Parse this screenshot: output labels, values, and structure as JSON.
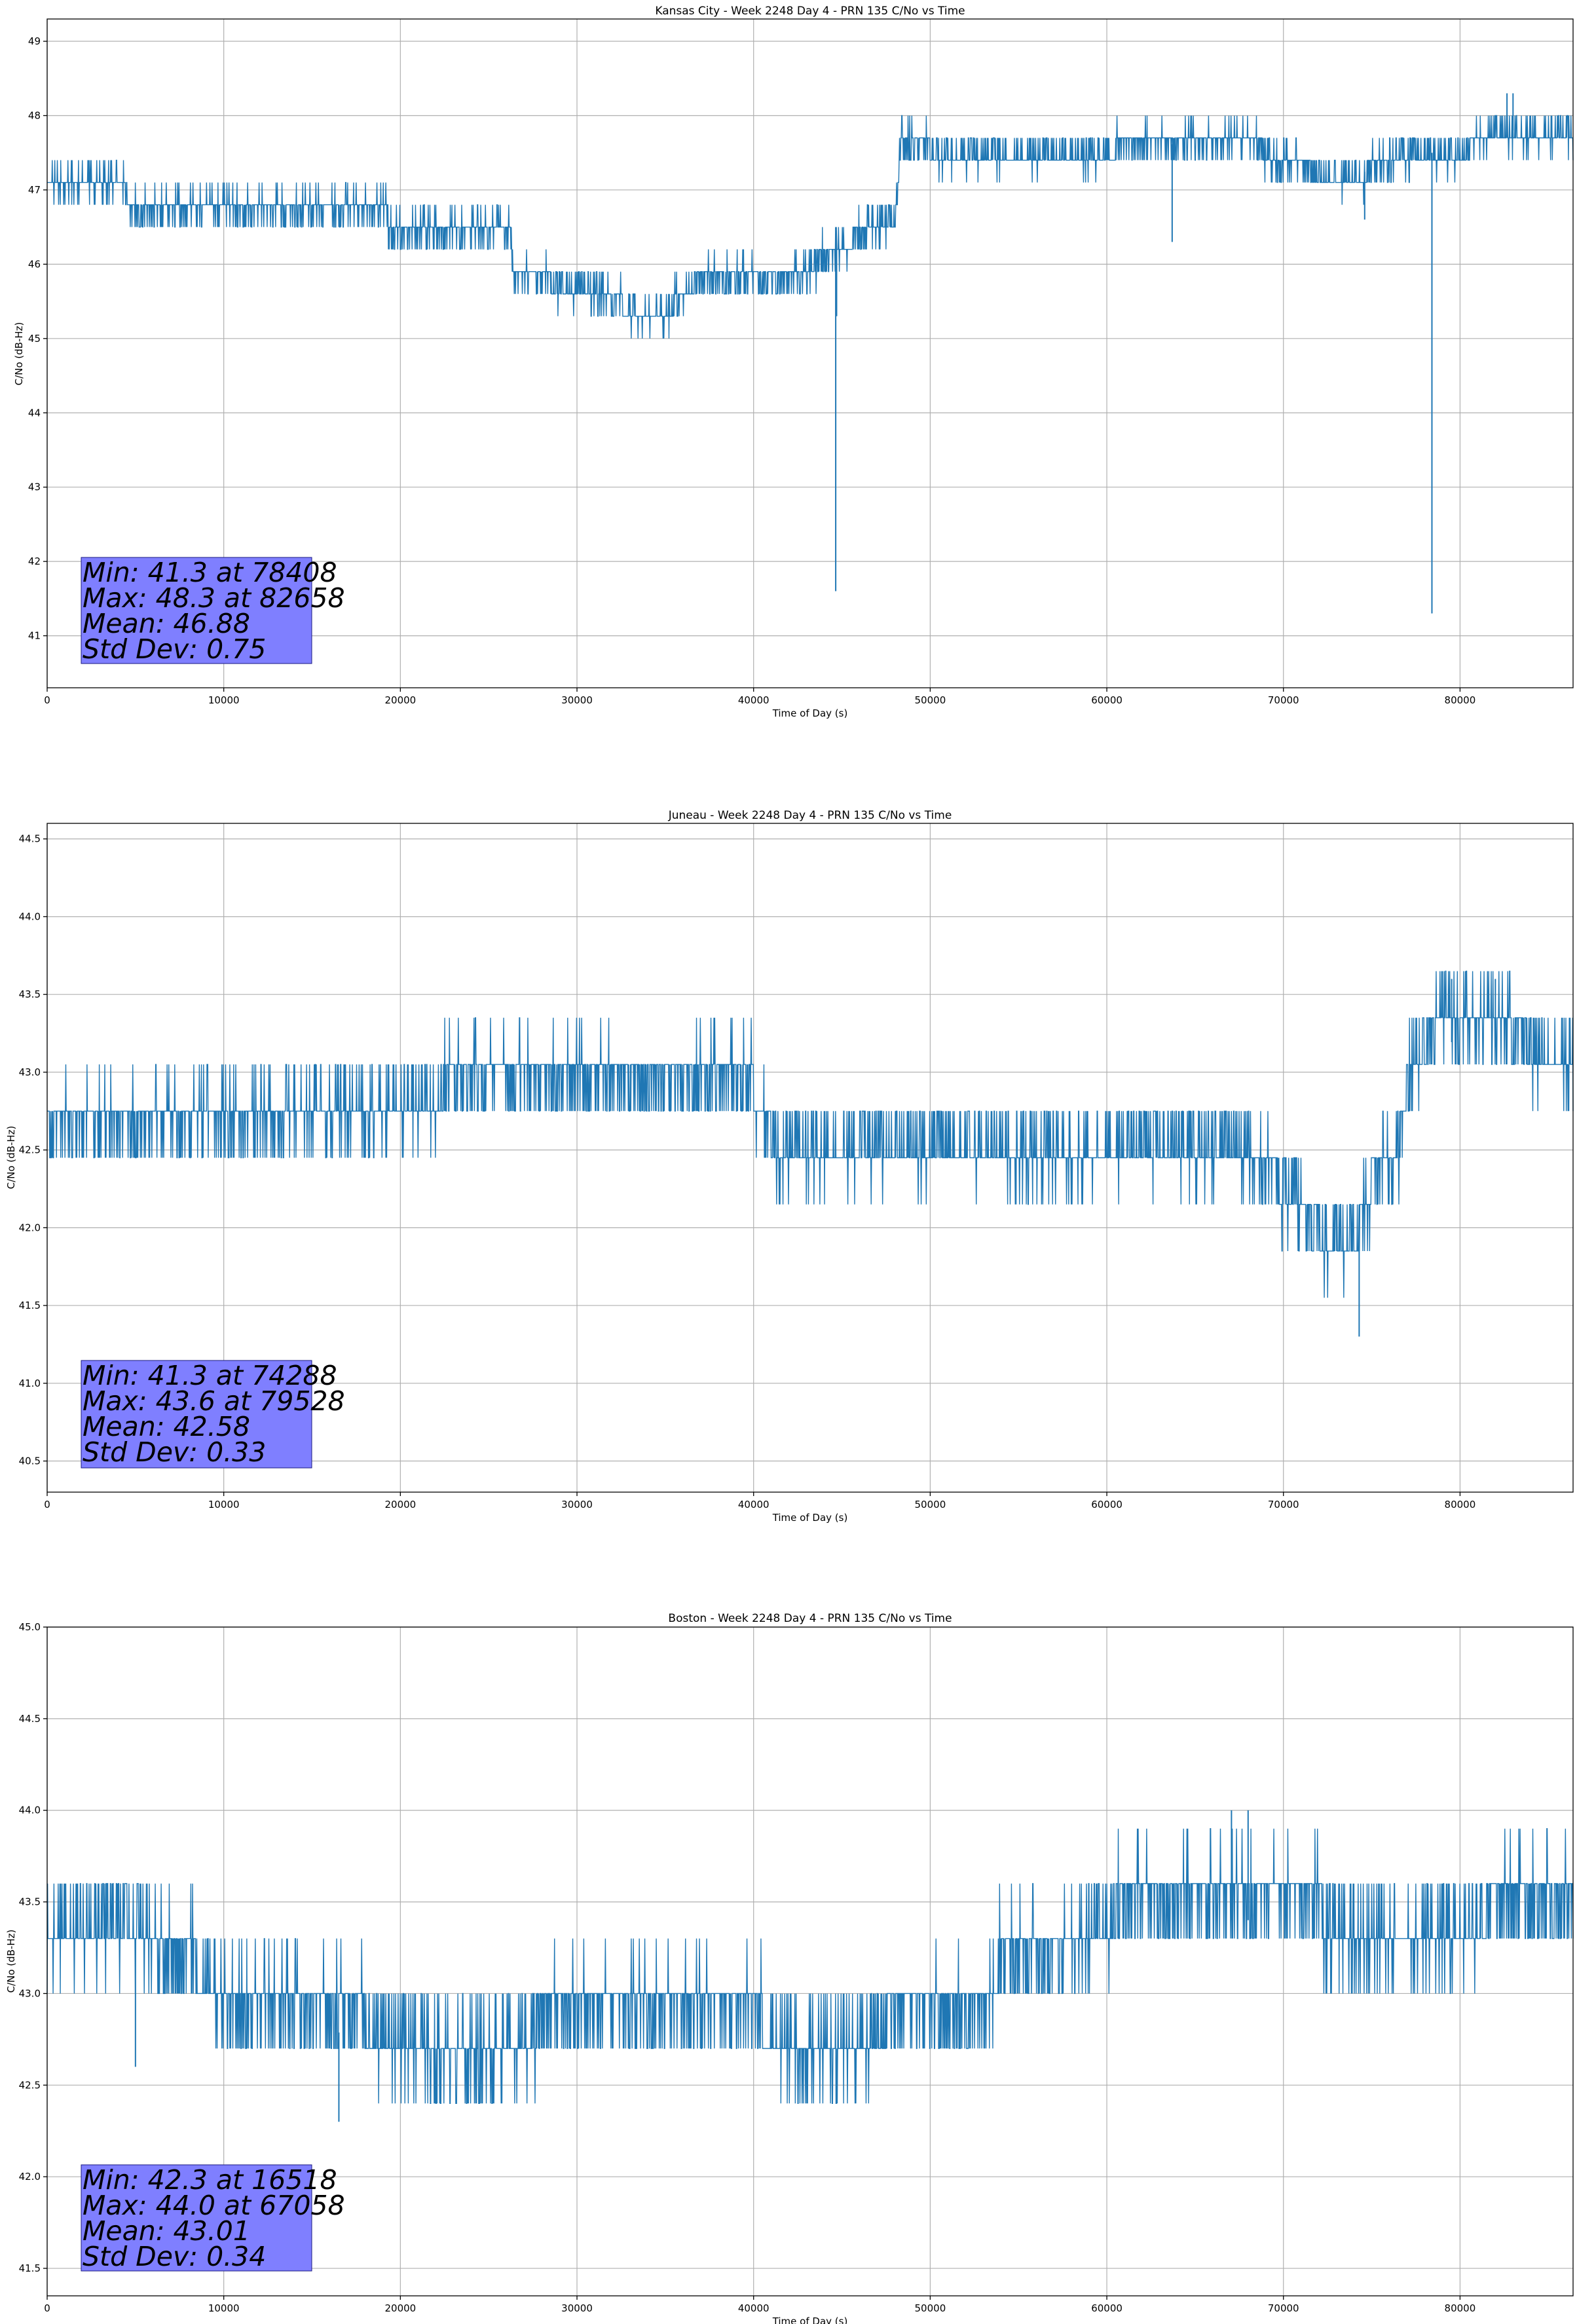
{
  "chart_data": [
    {
      "type": "line",
      "title": "Kansas City - Week 2248 Day 4 - PRN 135 C/No vs Time",
      "xlabel": "Time of Day (s)",
      "ylabel": "C/No (dB-Hz)",
      "xlim": [
        0,
        86400
      ],
      "ylim": [
        40.3,
        49.3
      ],
      "xticks": [
        0,
        10000,
        20000,
        30000,
        40000,
        50000,
        60000,
        70000,
        80000
      ],
      "yticks": [
        41,
        42,
        43,
        44,
        45,
        46,
        47,
        48,
        49
      ],
      "ytick_decimals": 0,
      "grid": true,
      "series_color": "#1f77b4",
      "quantum": 0.3,
      "noise": 0.18,
      "baseline": [
        [
          0,
          47.1
        ],
        [
          4500,
          47.1
        ],
        [
          4600,
          46.75
        ],
        [
          19200,
          46.75
        ],
        [
          19300,
          46.45
        ],
        [
          26200,
          46.45
        ],
        [
          26500,
          45.8
        ],
        [
          30500,
          45.7
        ],
        [
          33000,
          45.4
        ],
        [
          35000,
          45.3
        ],
        [
          36000,
          45.6
        ],
        [
          37000,
          45.8
        ],
        [
          42000,
          45.8
        ],
        [
          44000,
          46.1
        ],
        [
          46000,
          46.4
        ],
        [
          48000,
          46.6
        ],
        [
          48300,
          47.7
        ],
        [
          50000,
          47.55
        ],
        [
          58000,
          47.5
        ],
        [
          63000,
          47.6
        ],
        [
          68000,
          47.7
        ],
        [
          69000,
          47.5
        ],
        [
          72000,
          47.2
        ],
        [
          75000,
          47.25
        ],
        [
          77000,
          47.5
        ],
        [
          80500,
          47.5
        ],
        [
          81000,
          47.7
        ],
        [
          82000,
          47.8
        ],
        [
          86400,
          47.8
        ]
      ],
      "spikes": [
        [
          44650,
          41.6
        ],
        [
          44700,
          45.3
        ],
        [
          63700,
          46.3
        ],
        [
          74600,
          46.6
        ],
        [
          78408,
          41.3
        ],
        [
          82658,
          48.3
        ],
        [
          83000,
          48.3
        ]
      ],
      "stats": {
        "min": "Min: 41.3 at 78408",
        "max": "Max: 48.3 at 82658",
        "mean": "Mean: 46.88",
        "std": "Std Dev: 0.75"
      }
    },
    {
      "type": "line",
      "title": "Juneau - Week 2248 Day 4 - PRN 135 C/No vs Time",
      "xlabel": "Time of Day (s)",
      "ylabel": "C/No (dB-Hz)",
      "xlim": [
        0,
        86400
      ],
      "ylim": [
        40.3,
        44.6
      ],
      "xticks": [
        0,
        10000,
        20000,
        30000,
        40000,
        50000,
        60000,
        70000,
        80000
      ],
      "yticks": [
        40.5,
        41.0,
        41.5,
        42.0,
        42.5,
        43.0,
        43.5,
        44.0,
        44.5
      ],
      "ytick_decimals": 1,
      "grid": true,
      "series_color": "#1f77b4",
      "quantum": 0.3,
      "noise": 0.2,
      "baseline": [
        [
          0,
          42.45
        ],
        [
          12000,
          42.55
        ],
        [
          22000,
          42.7
        ],
        [
          23000,
          42.8
        ],
        [
          35000,
          42.8
        ],
        [
          40000,
          42.75
        ],
        [
          41000,
          42.45
        ],
        [
          53000,
          42.4
        ],
        [
          55000,
          42.3
        ],
        [
          60000,
          42.4
        ],
        [
          68000,
          42.4
        ],
        [
          70000,
          42.1
        ],
        [
          72000,
          41.85
        ],
        [
          74000,
          41.8
        ],
        [
          75000,
          42.15
        ],
        [
          76500,
          42.3
        ],
        [
          77000,
          42.8
        ],
        [
          79000,
          43.2
        ],
        [
          83000,
          43.15
        ],
        [
          84500,
          43.0
        ],
        [
          86400,
          42.8
        ]
      ],
      "spikes": [
        [
          74288,
          41.3
        ],
        [
          79528,
          43.6
        ],
        [
          82000,
          43.6
        ]
      ],
      "stats": {
        "min": "Min: 41.3 at 74288",
        "max": "Max: 43.6 at 79528",
        "mean": "Mean: 42.58",
        "std": "Std Dev: 0.33"
      }
    },
    {
      "type": "line",
      "title": "Boston - Week 2248 Day 4 - PRN 135 C/No vs Time",
      "xlabel": "Time of Day (s)",
      "ylabel": "C/No (dB-Hz)",
      "xlim": [
        0,
        86400
      ],
      "ylim": [
        41.35,
        45.0
      ],
      "xticks": [
        0,
        10000,
        20000,
        30000,
        40000,
        50000,
        60000,
        70000,
        80000
      ],
      "yticks": [
        41.5,
        42.0,
        42.5,
        43.0,
        43.5,
        44.0,
        44.5,
        45.0
      ],
      "ytick_decimals": 1,
      "grid": true,
      "series_color": "#1f77b4",
      "quantum": 0.3,
      "noise": 0.18,
      "baseline": [
        [
          0,
          43.3
        ],
        [
          5000,
          43.3
        ],
        [
          5500,
          43.2
        ],
        [
          8000,
          43.1
        ],
        [
          10000,
          42.85
        ],
        [
          16000,
          42.8
        ],
        [
          20000,
          42.7
        ],
        [
          23000,
          42.5
        ],
        [
          27000,
          42.65
        ],
        [
          28000,
          42.8
        ],
        [
          40000,
          42.8
        ],
        [
          42000,
          42.6
        ],
        [
          46000,
          42.6
        ],
        [
          48000,
          42.8
        ],
        [
          53000,
          42.8
        ],
        [
          54000,
          43.1
        ],
        [
          58000,
          43.1
        ],
        [
          59000,
          43.3
        ],
        [
          62000,
          43.4
        ],
        [
          72000,
          43.4
        ],
        [
          73000,
          43.2
        ],
        [
          80000,
          43.2
        ],
        [
          82000,
          43.4
        ],
        [
          86400,
          43.4
        ]
      ],
      "spikes": [
        [
          16518,
          42.3
        ],
        [
          67058,
          44.0
        ],
        [
          68000,
          44.0
        ],
        [
          5000,
          42.6
        ]
      ],
      "stats": {
        "min": "Min: 42.3 at 16518",
        "max": "Max: 44.0 at 67058",
        "mean": "Mean: 43.01",
        "std": "Std Dev: 0.34"
      }
    }
  ],
  "stats_box_color": "#7f7fff"
}
